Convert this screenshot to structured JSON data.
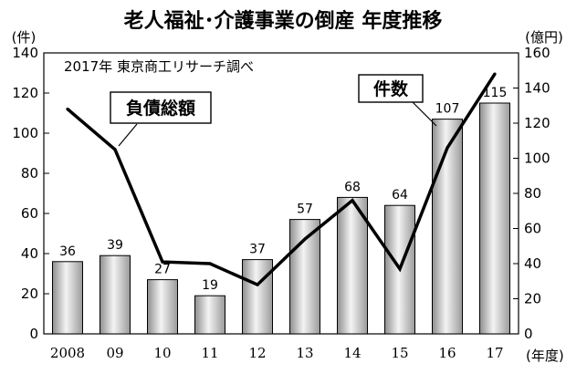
{
  "chart_data": {
    "type": "bar",
    "title": "老人福祉･介護事業の倒産 年度推移",
    "subtitle": "2017年 東京商工リサーチ調べ",
    "left_unit": "(件)",
    "right_unit": "(億円)",
    "x_unit": "(年度)",
    "categories": [
      "2008",
      "09",
      "10",
      "11",
      "12",
      "13",
      "14",
      "15",
      "16",
      "17"
    ],
    "series": [
      {
        "name": "件数",
        "type": "bar",
        "axis": "left",
        "values": [
          36,
          39,
          27,
          19,
          37,
          57,
          68,
          64,
          107,
          115
        ],
        "data_labels": [
          "36",
          "39",
          "27",
          "19",
          "37",
          "57",
          "68",
          "64",
          "107",
          "115"
        ]
      },
      {
        "name": "負債総額",
        "type": "line",
        "axis": "right",
        "values": [
          128,
          105,
          41,
          40,
          28,
          54,
          76,
          37,
          106,
          148
        ]
      }
    ],
    "y_left": {
      "min": 0,
      "max": 140,
      "ticks": [
        "0",
        "20",
        "40",
        "60",
        "80",
        "100",
        "120",
        "140"
      ]
    },
    "y_right": {
      "min": 0,
      "max": 160,
      "ticks": [
        "0",
        "20",
        "40",
        "60",
        "80",
        "100",
        "120",
        "140",
        "160"
      ]
    },
    "grid": false
  }
}
